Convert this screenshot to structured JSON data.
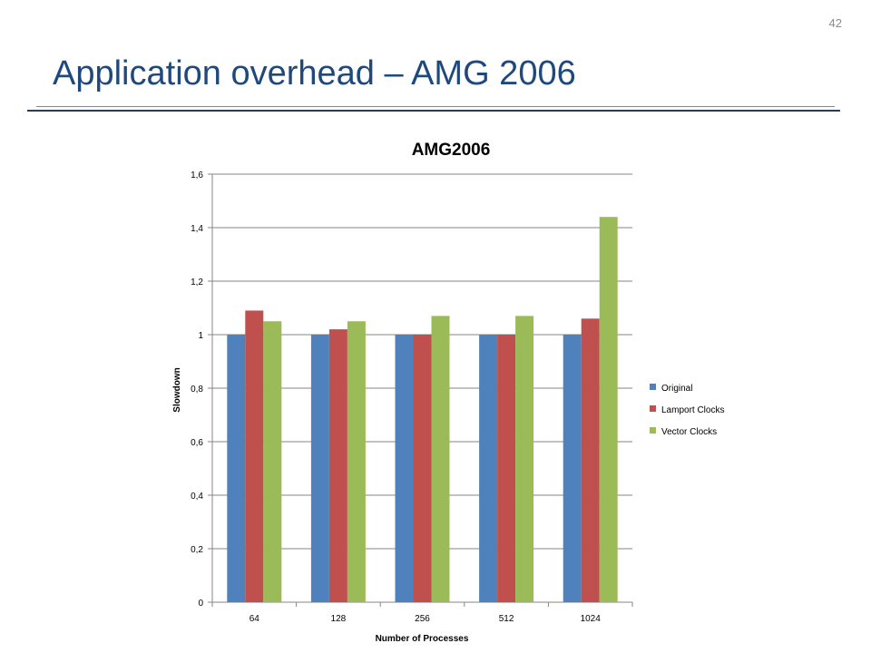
{
  "slide": {
    "number": "42",
    "title": "Application overhead – AMG 2006"
  },
  "chart_data": {
    "type": "bar",
    "title": "AMG2006",
    "xlabel": "Number of Processes",
    "ylabel": "Slowdown",
    "categories": [
      "64",
      "128",
      "256",
      "512",
      "1024"
    ],
    "series": [
      {
        "name": "Original",
        "color": "#4f81bd",
        "values": [
          1,
          1,
          1,
          1,
          1
        ]
      },
      {
        "name": "Lamport Clocks",
        "color": "#c0504d",
        "values": [
          1.09,
          1.02,
          1,
          1,
          1.06
        ]
      },
      {
        "name": "Vector Clocks",
        "color": "#9bbb59",
        "values": [
          1.05,
          1.05,
          1.07,
          1.07,
          1.44
        ]
      }
    ],
    "ylim": [
      0,
      1.6
    ],
    "yticks": [
      "0",
      "0,2",
      "0,4",
      "0,6",
      "0,8",
      "1",
      "1,2",
      "1,4",
      "1,6"
    ],
    "grid": true,
    "legend_position": "right"
  }
}
